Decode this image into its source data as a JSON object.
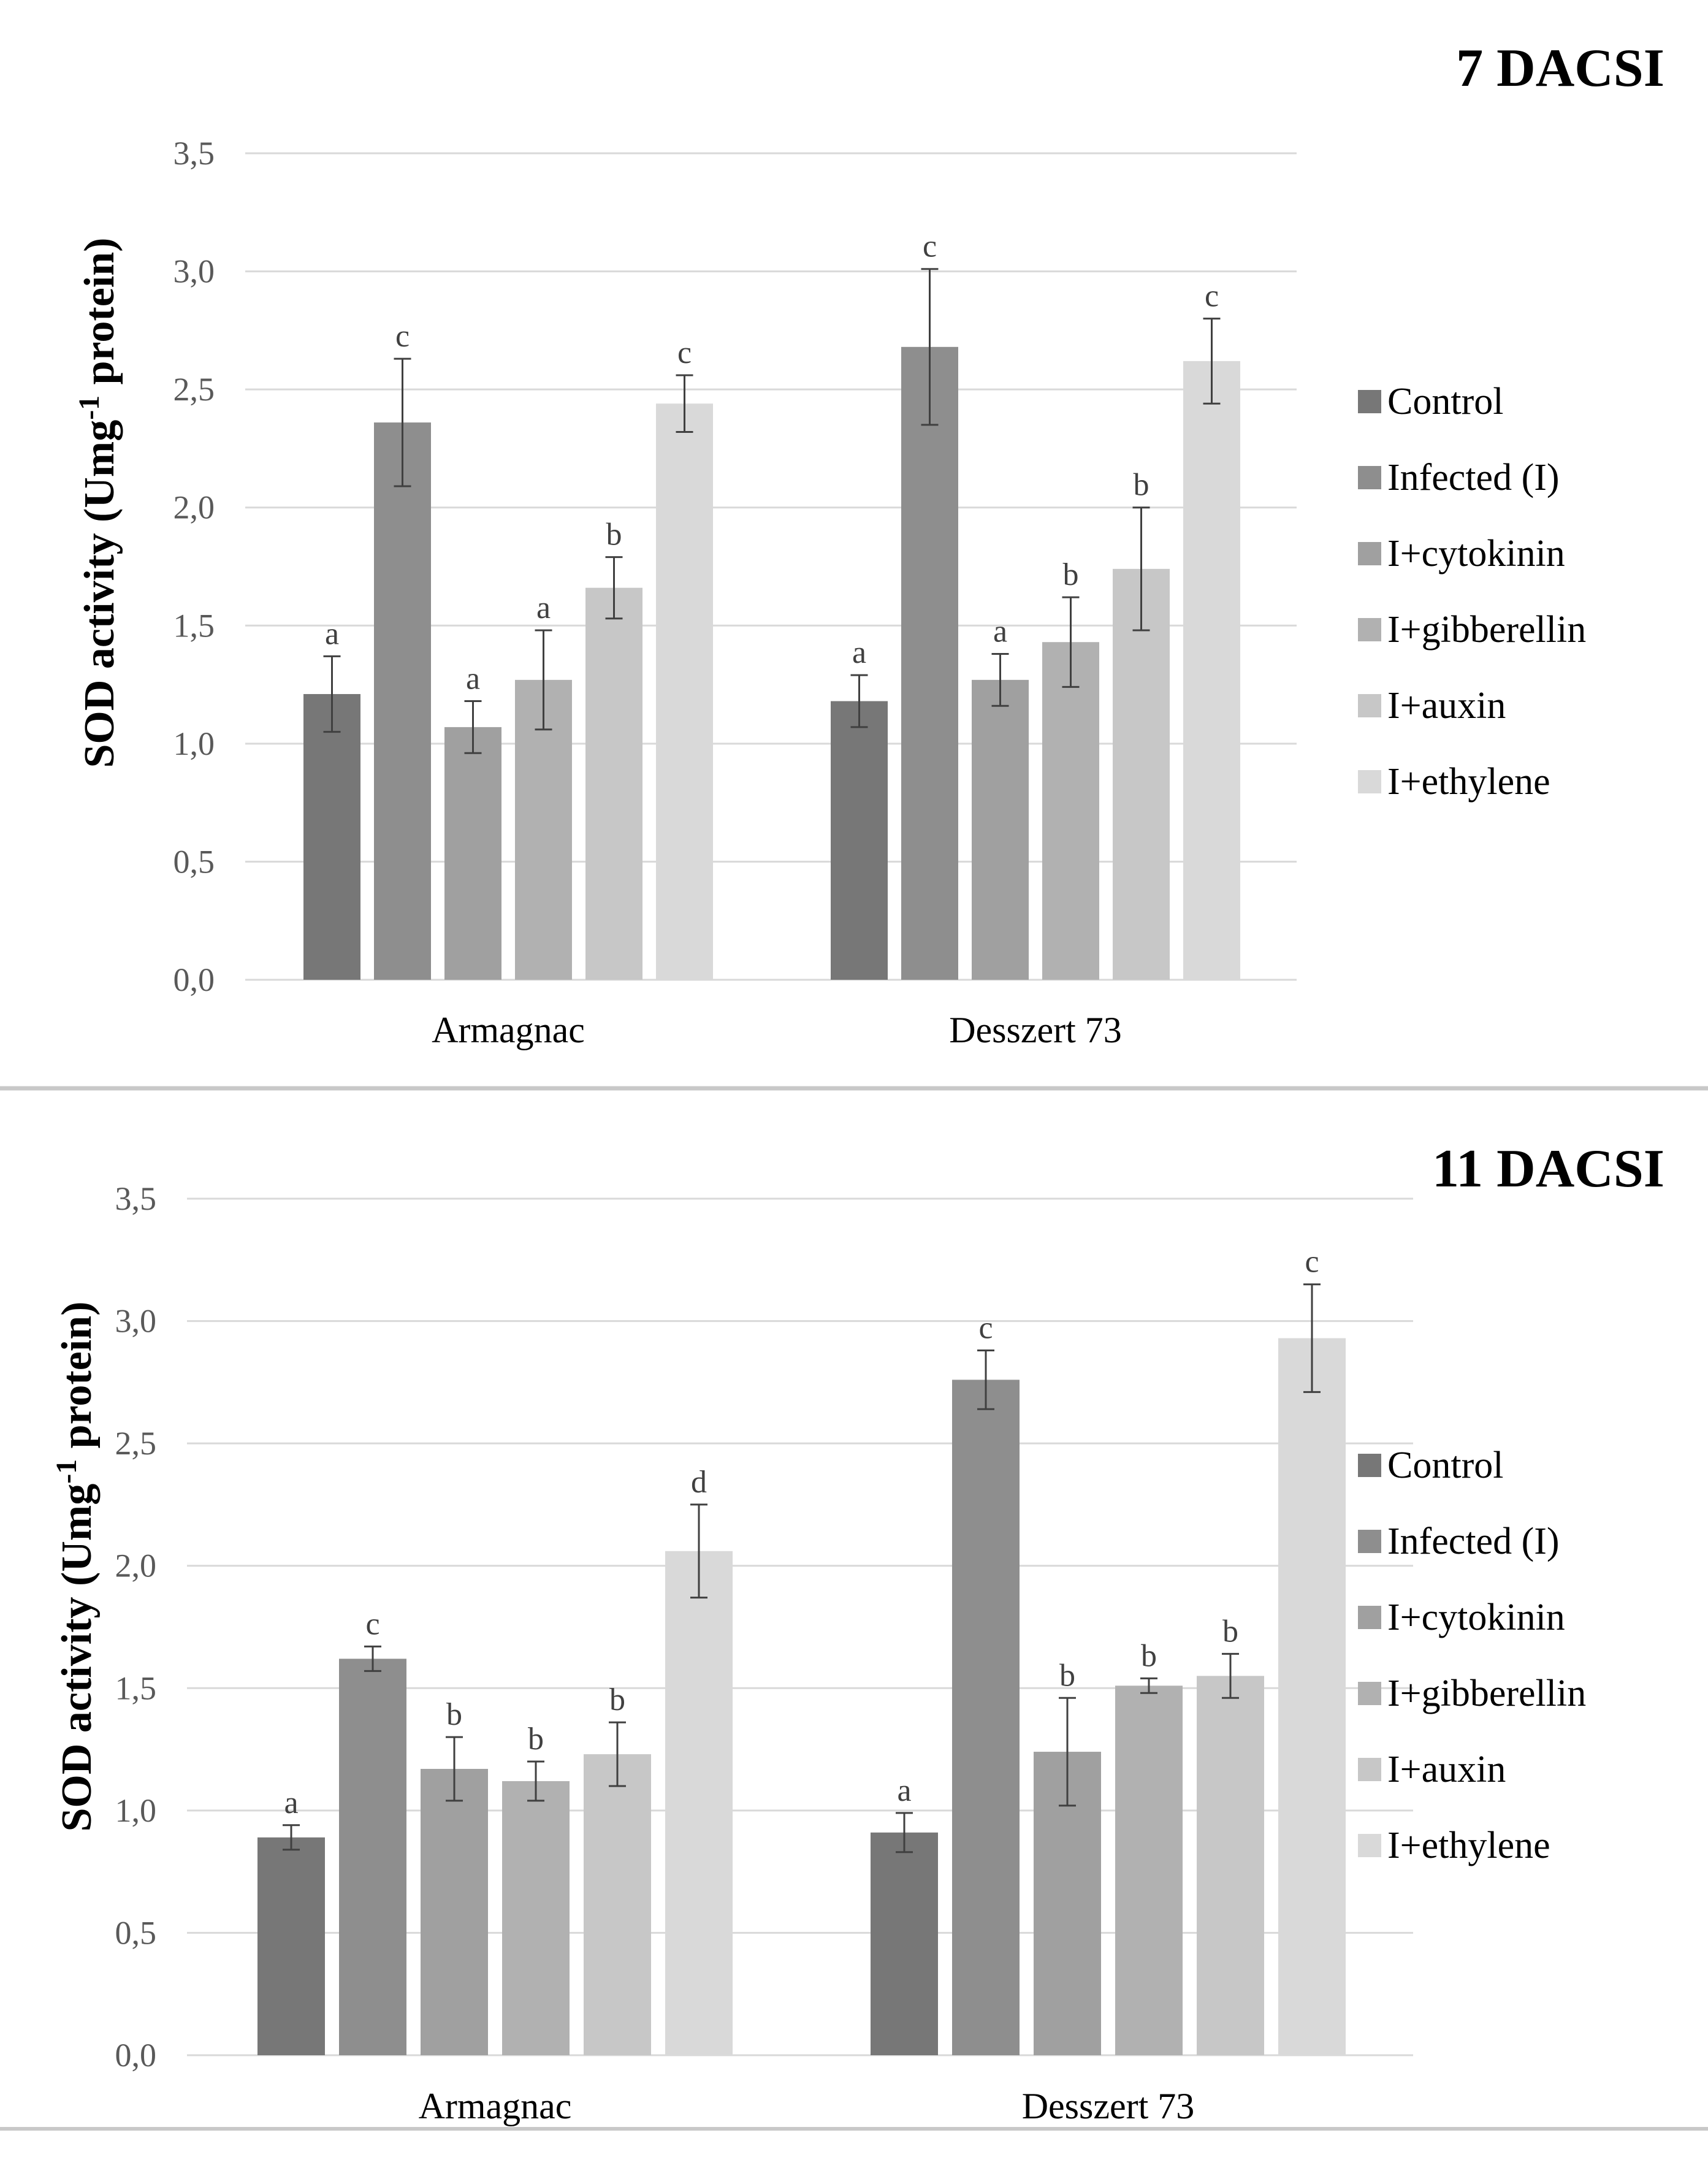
{
  "figure": {
    "series_names": [
      "Control",
      "Infected (I)",
      "I+cytokinin",
      "I+gibberellin",
      "I+auxin",
      "I+ethylene"
    ],
    "series_colors": [
      "#777777",
      "#8e8e8e",
      "#a0a0a0",
      "#b1b1b1",
      "#c7c7c7",
      "#d9d9d9"
    ]
  },
  "chart_data": [
    {
      "type": "bar",
      "title": "7 DACSI",
      "ylabel": "SOD activity (Umg-1 protein)",
      "ylabel_parts": {
        "before": "SOD activity (Umg",
        "sup": "-1",
        "after": " protein)"
      },
      "xlabel": "",
      "ylim": [
        0,
        3.5
      ],
      "yticks": [
        "0,0",
        "0,5",
        "1,0",
        "1,5",
        "2,0",
        "2,5",
        "3,0",
        "3,5"
      ],
      "categories": [
        "Armagnac",
        "Desszert 73"
      ],
      "grid": true,
      "legend_position": "right",
      "series": [
        {
          "name": "Control",
          "values": [
            1.21,
            1.18
          ],
          "errors": [
            0.16,
            0.11
          ],
          "letters": [
            "a",
            "a"
          ]
        },
        {
          "name": "Infected (I)",
          "values": [
            2.36,
            2.68
          ],
          "errors": [
            0.27,
            0.33
          ],
          "letters": [
            "c",
            "c"
          ]
        },
        {
          "name": "I+cytokinin",
          "values": [
            1.07,
            1.27
          ],
          "errors": [
            0.11,
            0.11
          ],
          "letters": [
            "a",
            "a"
          ]
        },
        {
          "name": "I+gibberellin",
          "values": [
            1.27,
            1.43
          ],
          "errors": [
            0.21,
            0.19
          ],
          "letters": [
            "a",
            "b"
          ]
        },
        {
          "name": "I+auxin",
          "values": [
            1.66,
            1.74
          ],
          "errors": [
            0.13,
            0.26
          ],
          "letters": [
            "b",
            "b"
          ]
        },
        {
          "name": "I+ethylene",
          "values": [
            2.44,
            2.62
          ],
          "errors": [
            0.12,
            0.18
          ],
          "letters": [
            "c",
            "c"
          ]
        }
      ]
    },
    {
      "type": "bar",
      "title": "11 DACSI",
      "ylabel": "SOD activity (Umg-1 protein)",
      "ylabel_parts": {
        "before": "SOD activity (Umg",
        "sup": "-1",
        "after": " protein)"
      },
      "xlabel": "",
      "ylim": [
        0,
        3.5
      ],
      "yticks": [
        "0,0",
        "0,5",
        "1,0",
        "1,5",
        "2,0",
        "2,5",
        "3,0",
        "3,5"
      ],
      "categories": [
        "Armagnac",
        "Desszert 73"
      ],
      "grid": true,
      "legend_position": "right",
      "series": [
        {
          "name": "Control",
          "values": [
            0.89,
            0.91
          ],
          "errors": [
            0.05,
            0.08
          ],
          "letters": [
            "a",
            "a"
          ]
        },
        {
          "name": "Infected (I)",
          "values": [
            1.62,
            2.76
          ],
          "errors": [
            0.05,
            0.12
          ],
          "letters": [
            "c",
            "c"
          ]
        },
        {
          "name": "I+cytokinin",
          "values": [
            1.17,
            1.24
          ],
          "errors": [
            0.13,
            0.22
          ],
          "letters": [
            "b",
            "b"
          ]
        },
        {
          "name": "I+gibberellin",
          "values": [
            1.12,
            1.51
          ],
          "errors": [
            0.08,
            0.03
          ],
          "letters": [
            "b",
            "b"
          ]
        },
        {
          "name": "I+auxin",
          "values": [
            1.23,
            1.55
          ],
          "errors": [
            0.13,
            0.09
          ],
          "letters": [
            "b",
            "b"
          ]
        },
        {
          "name": "I+ethylene",
          "values": [
            2.06,
            2.93
          ],
          "errors": [
            0.19,
            0.22
          ],
          "letters": [
            "d",
            "c"
          ]
        }
      ]
    }
  ]
}
